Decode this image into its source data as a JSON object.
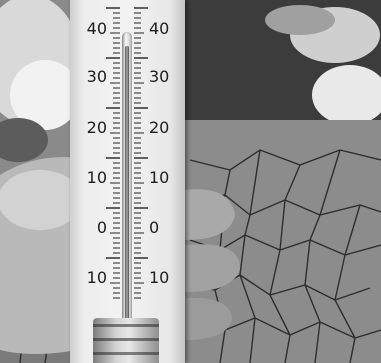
{
  "scene": {
    "background": "cracked dry earth",
    "subject": "hand holding thermometer"
  },
  "thermometer": {
    "scale_labels_left": [
      "40",
      "30",
      "20",
      "10",
      "0",
      "10"
    ],
    "scale_labels_right": [
      "40",
      "30",
      "20",
      "10",
      "0",
      "10"
    ],
    "reading_fraction": 0.96,
    "colors": {
      "body": "#ededed",
      "text": "#1d1d1d"
    }
  }
}
